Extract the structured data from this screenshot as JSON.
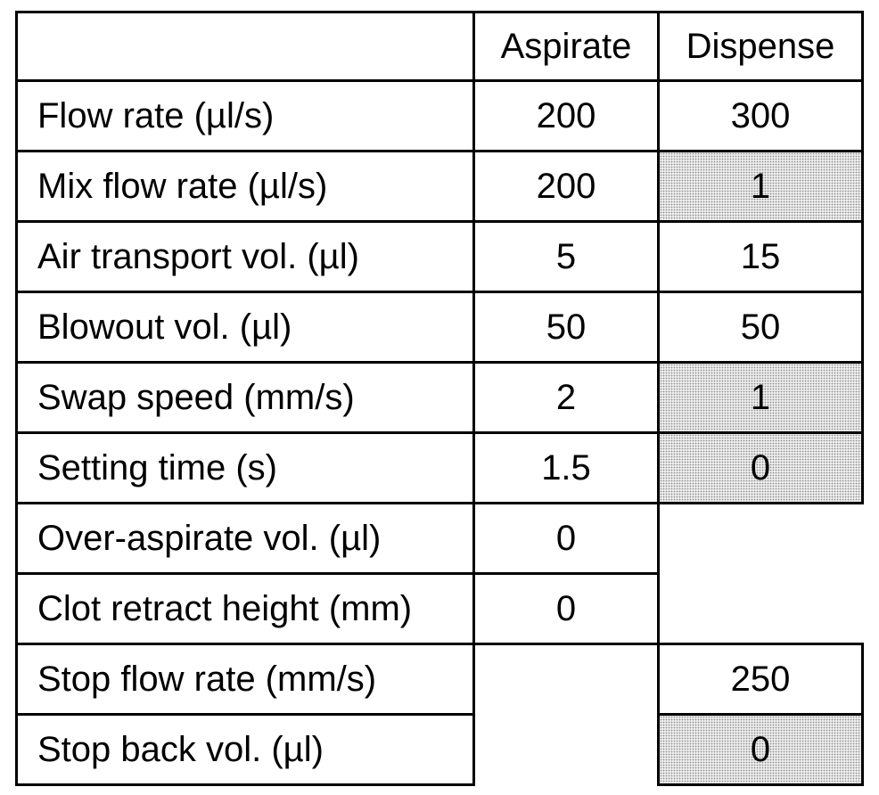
{
  "table": {
    "columns": [
      "",
      "Aspirate",
      "Dispense"
    ],
    "rows": [
      {
        "label": "Flow rate (µl/s)",
        "aspirate": "200",
        "dispense": "300"
      },
      {
        "label": "Mix flow rate (µl/s)",
        "aspirate": "200",
        "dispense": "1",
        "dispense_shaded": true
      },
      {
        "label": "Air transport vol. (µl)",
        "aspirate": "5",
        "dispense": "15"
      },
      {
        "label": "Blowout vol. (µl)",
        "aspirate": "50",
        "dispense": "50"
      },
      {
        "label": "Swap speed (mm/s)",
        "aspirate": "2",
        "dispense": "1",
        "dispense_shaded": true
      },
      {
        "label": "Setting time (s)",
        "aspirate": "1.5",
        "dispense": "0",
        "dispense_shaded": true
      },
      {
        "label": "Over-aspirate vol. (µl)",
        "aspirate": "0",
        "dispense": null
      },
      {
        "label": "Clot retract height (mm)",
        "aspirate": "0",
        "dispense": null
      },
      {
        "label": "Stop flow rate (mm/s)",
        "aspirate": null,
        "dispense": "250"
      },
      {
        "label": "Stop back vol. (µl)",
        "aspirate": null,
        "dispense": "0",
        "dispense_shaded": true
      }
    ]
  },
  "colors": {
    "border": "#000000",
    "shading": "#ededed",
    "text": "#000000"
  }
}
